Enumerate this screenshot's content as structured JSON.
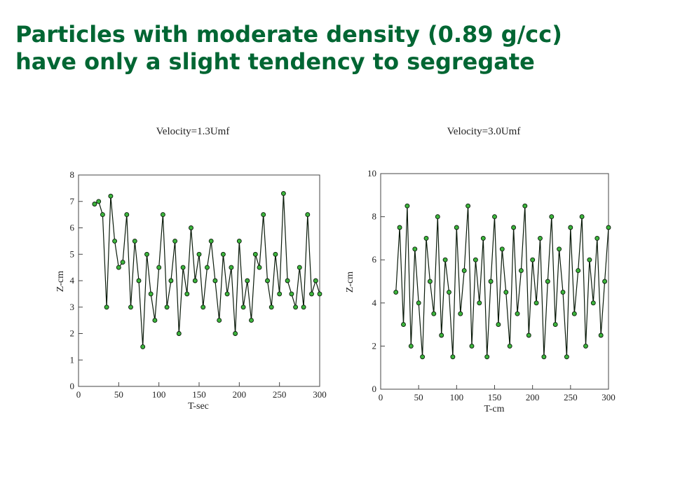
{
  "slide": {
    "title_line1": "Particles with moderate density (0.89 g/cc)",
    "title_line2": "have only a slight tendency to segregate",
    "title_color": "#006633"
  },
  "colors": {
    "marker_fill": "#3cb43c",
    "marker_edge": "#0a1a0a",
    "axis": "#444444"
  },
  "chart_data": [
    {
      "type": "scatter",
      "title": "Velocity=1.3Umf",
      "xlabel": "T-sec",
      "ylabel": "Z-cm",
      "xlim": [
        0,
        300
      ],
      "ylim": [
        0,
        8
      ],
      "xticks": [
        0,
        50,
        100,
        150,
        200,
        250,
        300
      ],
      "yticks": [
        0,
        1,
        2,
        3,
        4,
        5,
        6,
        7,
        8
      ],
      "grid": false,
      "marker": "circle",
      "series": [
        {
          "x": [
            20,
            25,
            30,
            35,
            40,
            45,
            50,
            55,
            60,
            65,
            70,
            75,
            80,
            85,
            90,
            95,
            100,
            105,
            110,
            115,
            120,
            125,
            130,
            135,
            140,
            145,
            150,
            155,
            160,
            165,
            170,
            175,
            180,
            185,
            190,
            195,
            200,
            205,
            210,
            215,
            220,
            225,
            230,
            235,
            240,
            245,
            250,
            255,
            260,
            265,
            270,
            275,
            280,
            285,
            290,
            295,
            300
          ],
          "y": [
            6.9,
            7.0,
            6.5,
            3.0,
            7.2,
            5.5,
            4.5,
            4.7,
            6.5,
            3.0,
            5.5,
            4.0,
            1.5,
            5.0,
            3.5,
            2.5,
            4.5,
            6.5,
            3.0,
            4.0,
            5.5,
            2.0,
            4.5,
            3.5,
            6.0,
            4.0,
            5.0,
            3.0,
            4.5,
            5.5,
            4.0,
            2.5,
            5.0,
            3.5,
            4.5,
            2.0,
            5.5,
            3.0,
            4.0,
            2.5,
            5.0,
            4.5,
            6.5,
            4.0,
            3.0,
            5.0,
            3.5,
            7.3,
            4.0,
            3.5,
            3.0,
            4.5,
            3.0,
            6.5,
            3.5,
            4.0,
            3.5
          ]
        }
      ]
    },
    {
      "type": "scatter",
      "title": "Velocity=3.0Umf",
      "xlabel": "T-cm",
      "ylabel": "Z-cm",
      "xlim": [
        0,
        300
      ],
      "ylim": [
        0,
        10
      ],
      "xticks": [
        0,
        50,
        100,
        150,
        200,
        250,
        300
      ],
      "yticks": [
        0,
        2,
        4,
        6,
        8,
        10
      ],
      "grid": false,
      "marker": "circle",
      "series": [
        {
          "x": [
            20,
            25,
            30,
            35,
            40,
            45,
            50,
            55,
            60,
            65,
            70,
            75,
            80,
            85,
            90,
            95,
            100,
            105,
            110,
            115,
            120,
            125,
            130,
            135,
            140,
            145,
            150,
            155,
            160,
            165,
            170,
            175,
            180,
            185,
            190,
            195,
            200,
            205,
            210,
            215,
            220,
            225,
            230,
            235,
            240,
            245,
            250,
            255,
            260,
            265,
            270,
            275,
            280,
            285,
            290,
            295,
            300
          ],
          "y": [
            4.5,
            7.5,
            3.0,
            8.5,
            2.0,
            6.5,
            4.0,
            1.5,
            7.0,
            5.0,
            3.5,
            8.0,
            2.5,
            6.0,
            4.5,
            1.5,
            7.5,
            3.5,
            5.5,
            8.5,
            2.0,
            6.0,
            4.0,
            7.0,
            1.5,
            5.0,
            8.0,
            3.0,
            6.5,
            4.5,
            2.0,
            7.5,
            3.5,
            5.5,
            8.5,
            2.5,
            6.0,
            4.0,
            7.0,
            1.5,
            5.0,
            8.0,
            3.0,
            6.5,
            4.5,
            1.5,
            7.5,
            3.5,
            5.5,
            8.0,
            2.0,
            6.0,
            4.0,
            7.0,
            2.5,
            5.0,
            7.5
          ]
        }
      ]
    }
  ]
}
